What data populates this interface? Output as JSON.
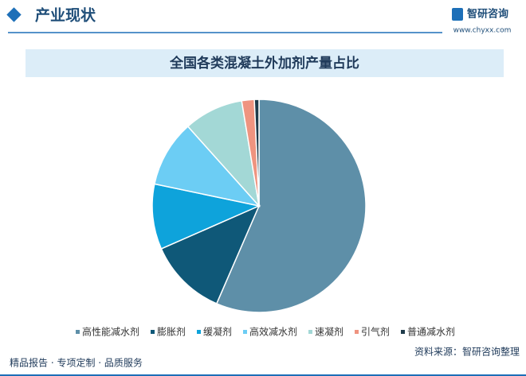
{
  "header": {
    "title": "产业现状",
    "brand": "智研咨询",
    "url": "www.chyxx.com"
  },
  "chart_data": {
    "type": "pie",
    "title": "全国各类混凝土外加剂产量占比",
    "categories": [
      "高性能减水剂",
      "膨胀剂",
      "缓凝剂",
      "高效减水剂",
      "速凝剂",
      "引气剂",
      "普通减水剂"
    ],
    "values": [
      56.5,
      11.9,
      9.9,
      10.1,
      9.0,
      1.9,
      0.7
    ],
    "colors": [
      "#5e8fa8",
      "#0f5878",
      "#0ea3db",
      "#6ccdf4",
      "#a3d8d6",
      "#ef9480",
      "#1f3b4b"
    ]
  },
  "footer": {
    "slogan": "精品报告 · 专项定制 · 品质服务",
    "source": "资料来源：智研咨询整理"
  }
}
